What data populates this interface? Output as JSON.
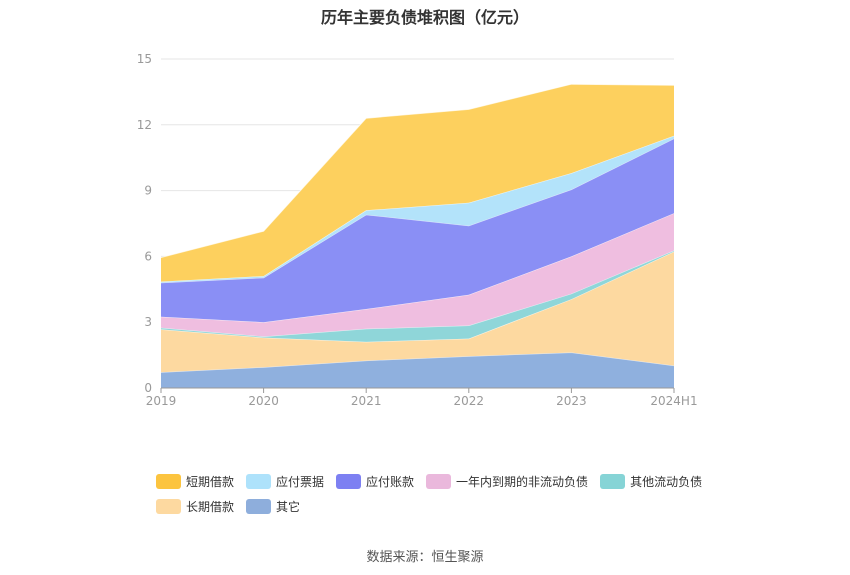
{
  "chart_data": {
    "type": "area",
    "stacked": true,
    "title": "历年主要负债堆积图（亿元）",
    "categories": [
      "2019",
      "2020",
      "2021",
      "2022",
      "2023",
      "2024H1"
    ],
    "ylim": [
      0,
      15
    ],
    "yticks": [
      0,
      3,
      6,
      9,
      12,
      15
    ],
    "grid": true,
    "legend_position": "bottom",
    "series": [
      {
        "name": "其它",
        "color": "#8fb0de",
        "values": [
          0.72,
          0.95,
          1.25,
          1.45,
          1.62,
          1.02
        ]
      },
      {
        "name": "长期借款",
        "color": "#fdd9a0",
        "values": [
          1.95,
          1.35,
          0.85,
          0.8,
          2.43,
          5.2
        ]
      },
      {
        "name": "其他流动负债",
        "color": "#8fd6d9",
        "values": [
          0.08,
          0.05,
          0.6,
          0.6,
          0.25,
          0.05
        ]
      },
      {
        "name": "一年内到期的非流动负债",
        "color": "#efbee0",
        "values": [
          0.5,
          0.65,
          0.9,
          1.4,
          1.7,
          1.7
        ]
      },
      {
        "name": "应付账款",
        "color": "#8a8ff5",
        "values": [
          1.55,
          2.03,
          4.3,
          3.15,
          3.05,
          3.4
        ]
      },
      {
        "name": "应付票据",
        "color": "#b3e3fa",
        "values": [
          0.05,
          0.07,
          0.2,
          1.05,
          0.75,
          0.13
        ]
      },
      {
        "name": "短期借款",
        "color": "#fdd05e",
        "values": [
          1.1,
          2.05,
          4.2,
          4.25,
          4.05,
          2.3
        ]
      }
    ],
    "legend_order": [
      "短期借款",
      "应付票据",
      "应付账款",
      "一年内到期的非流动负债",
      "其他流动负债",
      "长期借款",
      "其它"
    ],
    "legend_colors": [
      "#fcc43f",
      "#aee2fb",
      "#7d80f2",
      "#eab8dc",
      "#86d4d6",
      "#fdd9a0",
      "#8eaedc"
    ],
    "source": "数据来源：恒生聚源"
  }
}
